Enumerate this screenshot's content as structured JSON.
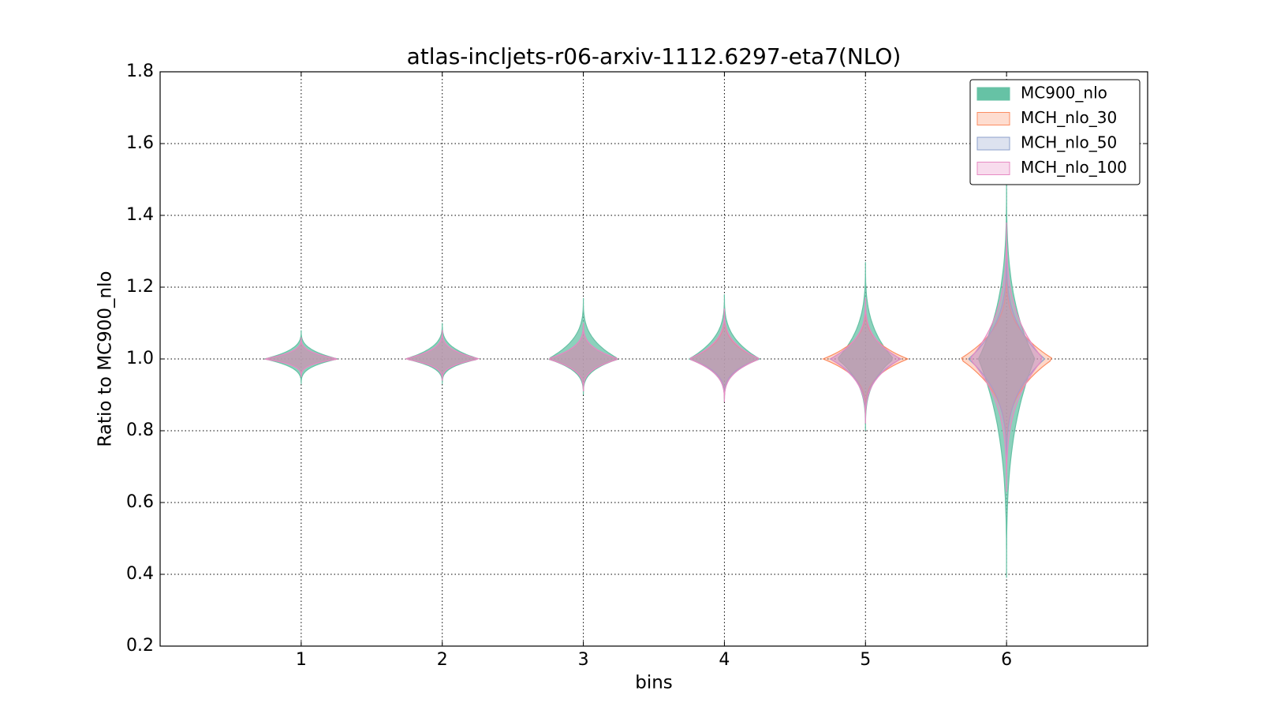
{
  "chart_data": {
    "type": "violin",
    "title": "atlas-incljets-r06-arxiv-1112.6297-eta7(NLO)",
    "xlabel": "bins",
    "ylabel": "Ratio to MC900_nlo",
    "categories": [
      "1",
      "2",
      "3",
      "4",
      "5",
      "6"
    ],
    "xlim": [
      0,
      7
    ],
    "ylim": [
      0.2,
      1.8
    ],
    "yticks": [
      0.2,
      0.4,
      0.6,
      0.8,
      {
        "value": 1,
        "label": "1.0"
      },
      1.2,
      1.4,
      1.6,
      1.8
    ],
    "grid": true,
    "legend": "upper right",
    "series": [
      {
        "name": "MC900_nlo",
        "color": "#66c2a5",
        "median": [
          1,
          1,
          1,
          1,
          1,
          1
        ],
        "min": [
          0.93,
          0.93,
          0.9,
          0.88,
          0.8,
          0.39
        ],
        "max": [
          1.08,
          1.1,
          1.17,
          1.18,
          1.27,
          1.5
        ],
        "width": [
          0.26,
          0.26,
          0.25,
          0.25,
          0.2,
          0.2
        ]
      },
      {
        "name": "MCH_nlo_30",
        "color": "#fc8d62",
        "median": [
          1,
          1,
          1,
          1,
          1,
          1
        ],
        "min": [
          0.95,
          0.94,
          0.91,
          0.89,
          0.85,
          0.72
        ],
        "max": [
          1.06,
          1.08,
          1.1,
          1.13,
          1.15,
          1.25
        ],
        "width": [
          0.26,
          0.26,
          0.25,
          0.25,
          0.3,
          0.33
        ]
      },
      {
        "name": "MCH_nlo_50",
        "color": "#8da0cb",
        "median": [
          1,
          1,
          1,
          1,
          1,
          1
        ],
        "min": [
          0.95,
          0.94,
          0.91,
          0.89,
          0.83,
          0.7
        ],
        "max": [
          1.06,
          1.08,
          1.1,
          1.14,
          1.17,
          1.3
        ],
        "width": [
          0.26,
          0.26,
          0.25,
          0.25,
          0.25,
          0.27
        ]
      },
      {
        "name": "MCH_nlo_100",
        "color": "#e78ac3",
        "median": [
          1,
          1,
          1,
          1,
          1,
          1
        ],
        "min": [
          0.95,
          0.94,
          0.91,
          0.88,
          0.82,
          0.63
        ],
        "max": [
          1.06,
          1.08,
          1.1,
          1.14,
          1.17,
          1.38
        ],
        "width": [
          0.26,
          0.26,
          0.25,
          0.25,
          0.25,
          0.26
        ]
      }
    ]
  }
}
